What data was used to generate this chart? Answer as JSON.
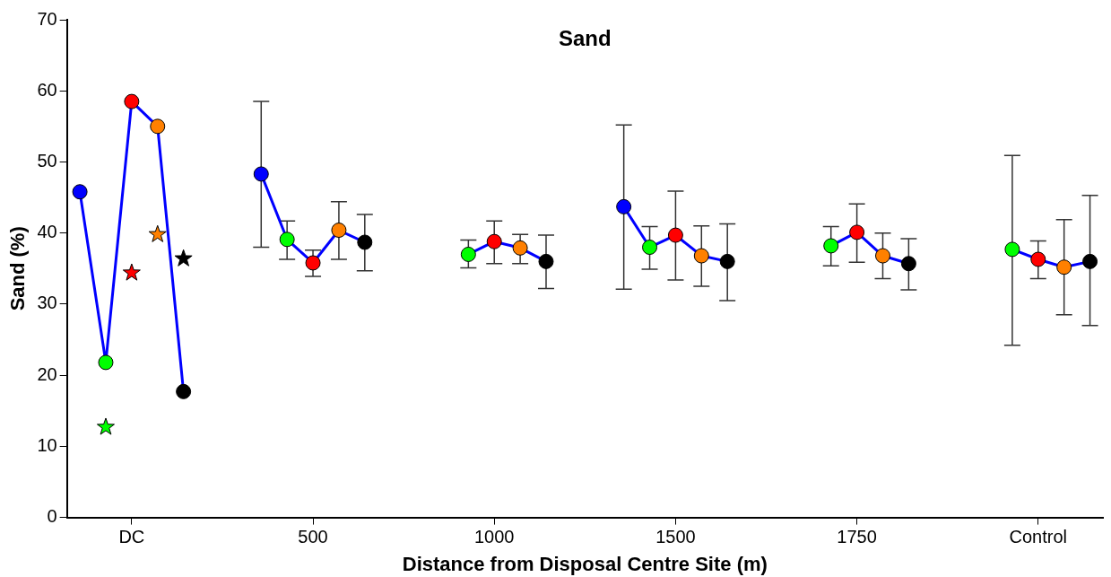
{
  "chart_data": {
    "type": "line",
    "title": "Sand",
    "xlabel": "Distance from Disposal Centre Site (m)",
    "ylabel": "Sand (%)",
    "categories": [
      null,
      null,
      "DC",
      null,
      null,
      null,
      null,
      null,
      null,
      "500",
      null,
      null,
      null,
      null,
      null,
      null,
      "1000",
      null,
      null,
      null,
      null,
      null,
      null,
      "1500",
      null,
      null,
      null,
      null,
      null,
      null,
      "1750",
      null,
      null,
      null,
      null,
      null,
      null,
      "Control",
      null,
      null
    ],
    "ylim": [
      0,
      70
    ],
    "yticks": [
      0,
      10,
      20,
      30,
      40,
      50,
      60,
      70
    ],
    "grid": false,
    "legend": false,
    "marker": "circle",
    "line_style": "solid",
    "series": [
      {
        "color": "#0000ff",
        "values": [
          45.8,
          21.8,
          58.5,
          55.0,
          17.7,
          null,
          null,
          48.3,
          39.1,
          35.8,
          40.4,
          38.7,
          null,
          null,
          null,
          37.0,
          38.8,
          37.9,
          36.0,
          null,
          null,
          43.7,
          38.0,
          39.7,
          36.8,
          36.0,
          null,
          null,
          null,
          38.2,
          40.1,
          36.8,
          35.7,
          null,
          null,
          null,
          37.7,
          36.3,
          35.2,
          36.0
        ],
        "colors": [
          "#0000ff",
          "#00ff00",
          "#ff0000",
          "#ff8000",
          "#000000",
          null,
          null,
          "#0000ff",
          "#00ff00",
          "#ff0000",
          "#ff8000",
          "#000000",
          null,
          null,
          null,
          "#00ff00",
          "#ff0000",
          "#ff8000",
          "#000000",
          null,
          null,
          "#0000ff",
          "#00ff00",
          "#ff0000",
          "#ff8000",
          "#000000",
          null,
          null,
          null,
          "#00ff00",
          "#ff0000",
          "#ff8000",
          "#000000",
          null,
          null,
          null,
          "#00ff00",
          "#ff0000",
          "#ff8000",
          "#000000"
        ],
        "errors": [
          null,
          null,
          null,
          null,
          null,
          null,
          null,
          [
            38.0,
            58.5
          ],
          [
            36.3,
            41.7
          ],
          [
            33.9,
            37.6
          ],
          [
            36.3,
            44.4
          ],
          [
            34.7,
            42.6
          ],
          null,
          null,
          null,
          [
            35.1,
            39.0
          ],
          [
            35.7,
            41.7
          ],
          [
            35.7,
            39.8
          ],
          [
            32.2,
            39.7
          ],
          null,
          null,
          [
            32.1,
            55.2
          ],
          [
            34.9,
            40.9
          ],
          [
            33.4,
            45.9
          ],
          [
            32.5,
            41.0
          ],
          [
            30.5,
            41.3
          ],
          null,
          null,
          null,
          [
            35.4,
            40.9
          ],
          [
            35.9,
            44.1
          ],
          [
            33.6,
            40.0
          ],
          [
            32.0,
            39.2
          ],
          null,
          null,
          null,
          [
            24.2,
            50.9
          ],
          [
            33.6,
            38.9
          ],
          [
            28.5,
            41.9
          ],
          [
            27.0,
            45.3
          ]
        ]
      },
      {
        "type": "scatter",
        "marker": "star",
        "values": [
          null,
          12.7,
          34.4,
          39.8,
          36.4,
          null,
          null,
          null,
          null,
          null,
          null,
          null,
          null,
          null,
          null,
          null,
          null,
          null,
          null,
          null,
          null,
          null,
          null,
          null,
          null,
          null,
          null,
          null,
          null,
          null,
          null,
          null,
          null,
          null,
          null,
          null,
          null,
          null,
          null,
          null
        ],
        "colors": [
          null,
          "#00ff00",
          "#ff0000",
          "#ff8000",
          "#000000",
          null,
          null,
          null,
          null,
          null,
          null,
          null,
          null,
          null,
          null,
          null,
          null,
          null,
          null,
          null,
          null,
          null,
          null,
          null,
          null,
          null,
          null,
          null,
          null,
          null,
          null,
          null,
          null,
          null,
          null,
          null,
          null,
          null,
          null,
          null
        ]
      }
    ]
  }
}
